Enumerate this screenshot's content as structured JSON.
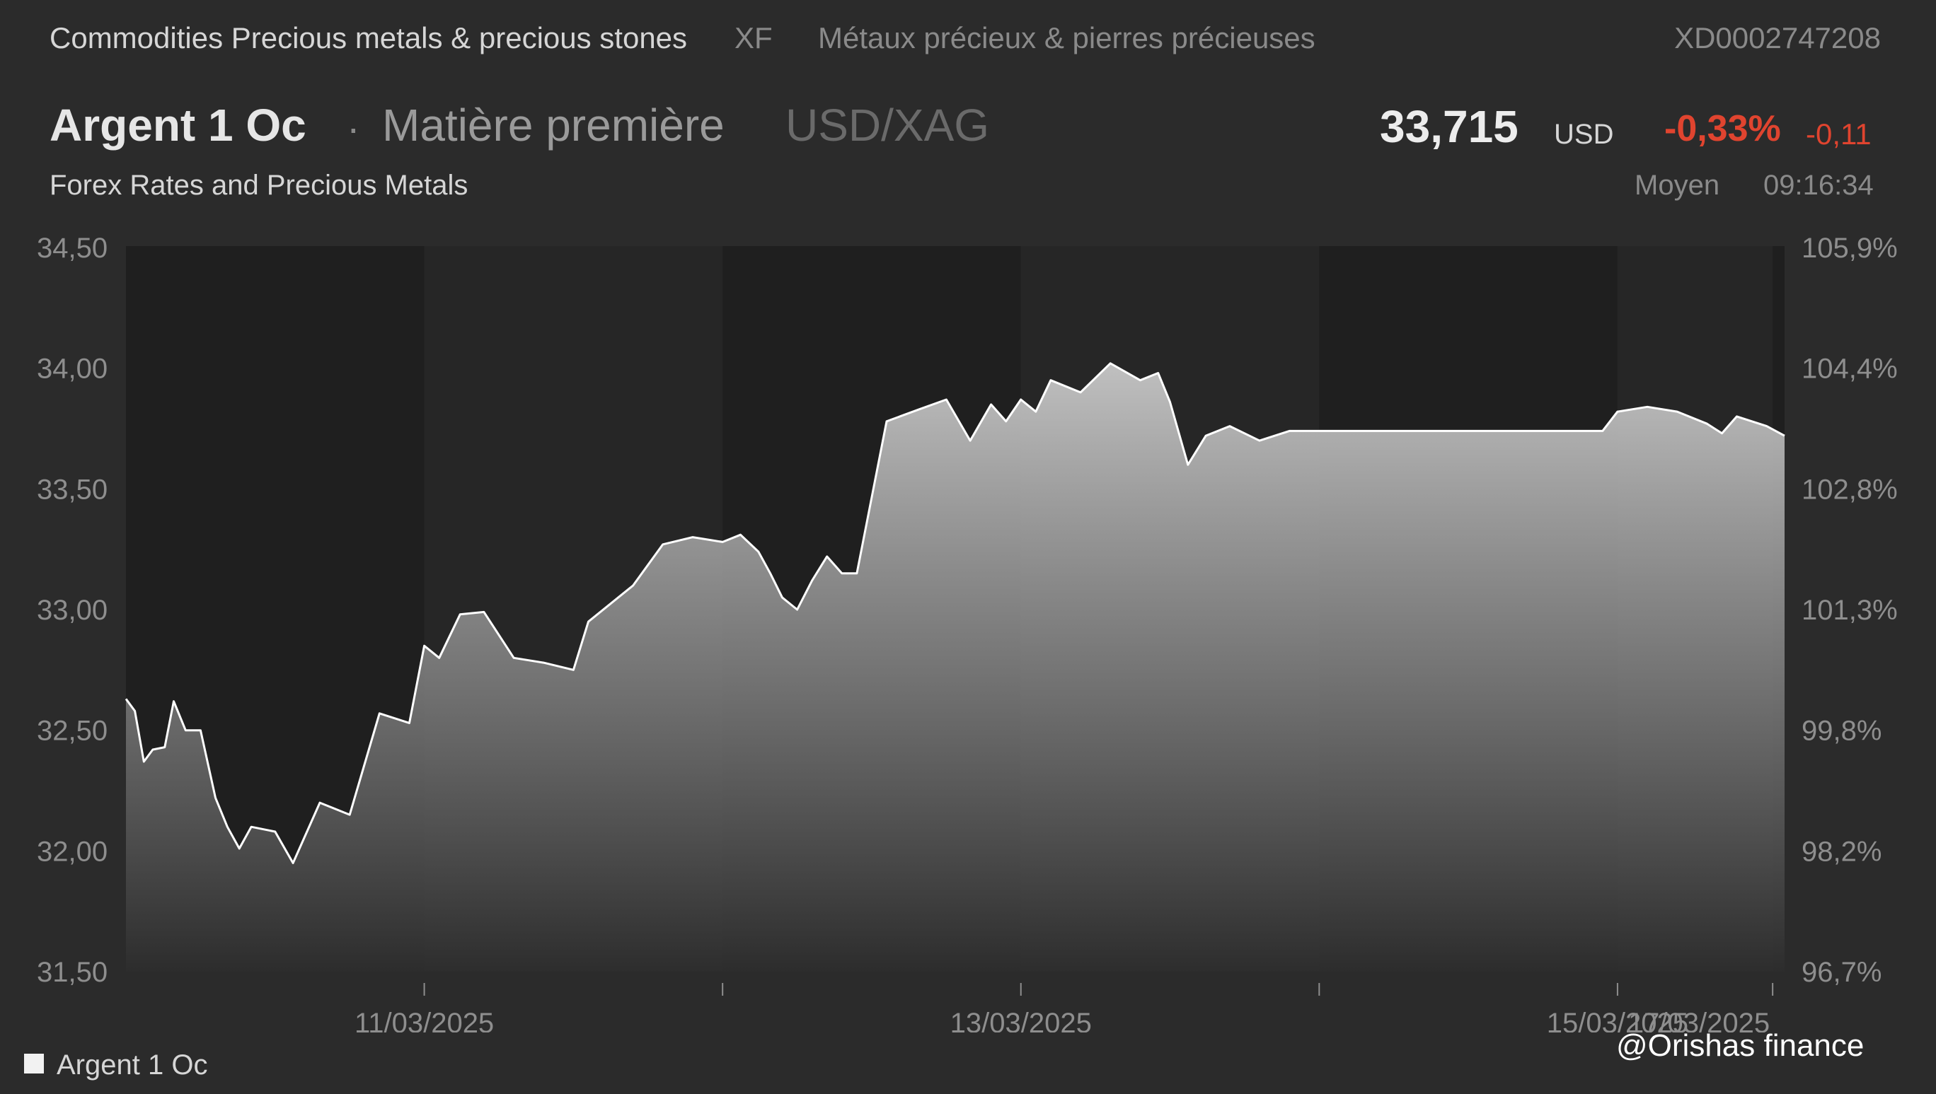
{
  "header": {
    "category": "Commodities Precious metals & precious stones",
    "exchange": "XF",
    "category_fr": "Métaux précieux & pierres précieuses",
    "isin": "XD0002747208"
  },
  "instrument": {
    "name": "Argent 1 Oc",
    "separator": "·",
    "type": "Matière première",
    "pair": "USD/XAG",
    "source": "Forex Rates and Precious Metals"
  },
  "quote": {
    "price": "33,715",
    "currency": "USD",
    "change_pct": "-0,33%",
    "change_abs": "-0,11",
    "price_type": "Moyen",
    "time": "09:16:34"
  },
  "colors": {
    "negative": "#e0442f",
    "background": "#2b2b2b",
    "line": "#ffffff"
  },
  "watermark": "@Orishas finance",
  "chart_data": {
    "type": "area",
    "title": "",
    "legend": {
      "position": "bottom-left",
      "entries": [
        "Argent 1 Oc"
      ]
    },
    "y_left_ticks": [
      "34,50",
      "34,00",
      "33,50",
      "33,00",
      "32,50",
      "32,00",
      "31,50"
    ],
    "y_right_ticks": [
      "105,9%",
      "104,4%",
      "102,8%",
      "101,3%",
      "99,8%",
      "98,2%",
      "96,7%"
    ],
    "ylim": [
      31.5,
      34.5
    ],
    "x_tick_labels": [
      "11/03/2025",
      "13/03/2025",
      "15/03/2025",
      "17/03/2025"
    ],
    "grid": false,
    "series": [
      {
        "name": "Argent 1 Oc",
        "x": [
          0,
          0.03,
          0.06,
          0.09,
          0.13,
          0.16,
          0.2,
          0.25,
          0.3,
          0.34,
          0.38,
          0.42,
          0.5,
          0.56,
          0.65,
          0.75,
          0.85,
          0.95,
          1.0,
          1.05,
          1.12,
          1.2,
          1.3,
          1.4,
          1.5,
          1.55,
          1.62,
          1.7,
          1.8,
          1.9,
          2.0,
          2.06,
          2.12,
          2.16,
          2.2,
          2.25,
          2.3,
          2.35,
          2.4,
          2.45,
          2.55,
          2.66,
          2.75,
          2.83,
          2.9,
          2.95,
          3.0,
          3.05,
          3.1,
          3.2,
          3.3,
          3.4,
          3.46,
          3.5,
          3.56,
          3.62,
          3.7,
          3.8,
          3.9,
          3.95,
          4.01,
          4.05,
          4.3,
          4.7,
          4.95,
          5.0,
          5.1,
          5.2,
          5.3,
          5.35,
          5.4,
          5.5,
          5.56
        ],
        "y": [
          32.63,
          32.58,
          32.37,
          32.42,
          32.43,
          32.62,
          32.5,
          32.5,
          32.22,
          32.1,
          32.01,
          32.1,
          32.08,
          31.95,
          32.2,
          32.15,
          32.57,
          32.53,
          32.85,
          32.8,
          32.98,
          32.99,
          32.8,
          32.78,
          32.75,
          32.95,
          33.02,
          33.1,
          33.27,
          33.3,
          33.28,
          33.31,
          33.24,
          33.15,
          33.05,
          33.0,
          33.12,
          33.22,
          33.15,
          33.15,
          33.78,
          33.83,
          33.87,
          33.7,
          33.85,
          33.78,
          33.87,
          33.82,
          33.95,
          33.9,
          34.02,
          33.95,
          33.98,
          33.86,
          33.6,
          33.72,
          33.76,
          33.7,
          33.74,
          33.74,
          33.74,
          33.74,
          33.74,
          33.74,
          33.74,
          33.82,
          33.84,
          33.82,
          33.77,
          33.73,
          33.8,
          33.76,
          33.72
        ]
      }
    ]
  }
}
